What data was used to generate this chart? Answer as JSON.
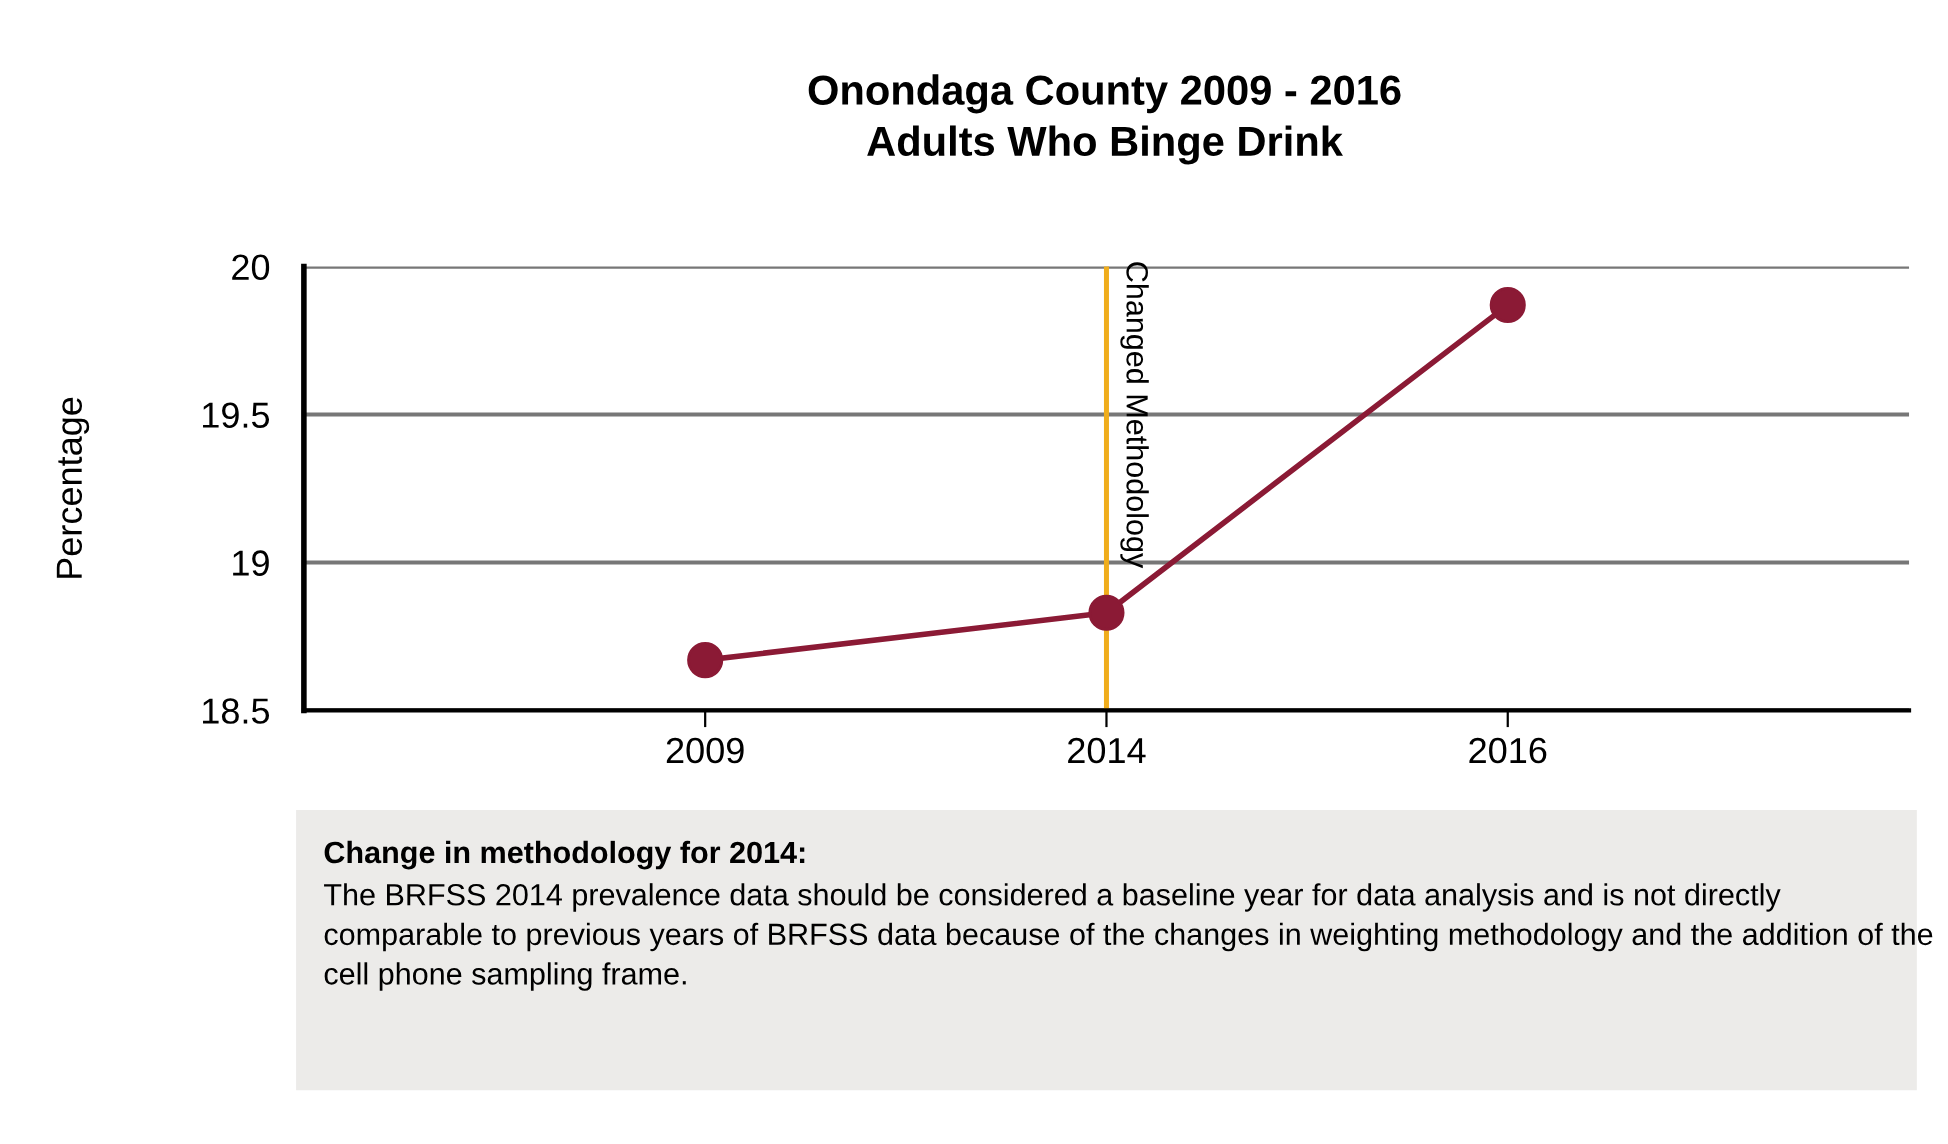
{
  "chart_data": {
    "type": "line",
    "title": "Onondaga County 2009 - 2016\nAdults Who Binge Drink",
    "ylabel": "Percentage",
    "categories": [
      "2009",
      "2014",
      "2016"
    ],
    "series": [
      {
        "color": "#8b1a35",
        "values": [
          18.67,
          18.83,
          19.87
        ]
      }
    ],
    "ylim": [
      18.5,
      20
    ],
    "yticks": [
      18.5,
      19,
      19.5,
      20
    ],
    "grid": "y",
    "marker": "circle",
    "line_style": "solid",
    "legend": false,
    "ref_lines": [
      {
        "axis": "x",
        "value": "2014",
        "label": "Changed Methodology",
        "color": "#f0ad1c"
      }
    ],
    "annotations": [
      "Change in methodology for 2014:",
      "The BRFSS 2014 prevalence data should be considered a baseline year for data analysis and is not directly comparable to previous years of BRFSS data because of the changes in weighting methodology and the addition of the cell phone sampling frame."
    ]
  }
}
